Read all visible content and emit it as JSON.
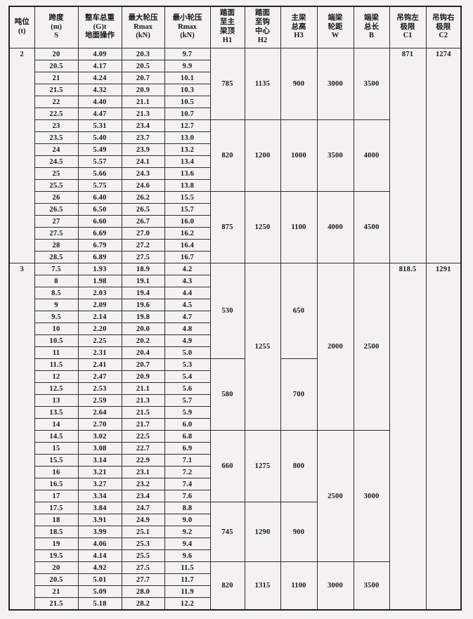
{
  "page": {
    "paper_color": "#f3f2ee",
    "line_color": "#2e2e2e",
    "text_color": "#161616"
  },
  "table": {
    "headers": [
      {
        "id": "tonnage",
        "lines": [
          "吨位",
          "(t)"
        ]
      },
      {
        "id": "span",
        "lines": [
          "跨度",
          "(m)",
          "S"
        ]
      },
      {
        "id": "total-weight",
        "lines": [
          "整车总重",
          "(G)t",
          "地面操作"
        ]
      },
      {
        "id": "max-wheel-load",
        "lines": [
          "最大轮压",
          "Rmax",
          "(kN)"
        ]
      },
      {
        "id": "min-wheel-load",
        "lines": [
          "最小轮压",
          "Rmax",
          "(kN)"
        ]
      },
      {
        "id": "h1",
        "lines": [
          "踏面",
          "至主",
          "梁顶",
          "H1"
        ]
      },
      {
        "id": "h2",
        "lines": [
          "踏面",
          "至钩",
          "中心",
          "H2"
        ]
      },
      {
        "id": "h3",
        "lines": [
          "主梁",
          "总高",
          "H3"
        ]
      },
      {
        "id": "w",
        "lines": [
          "端梁",
          "轮距",
          "W"
        ]
      },
      {
        "id": "b",
        "lines": [
          "端梁",
          "总长",
          "B"
        ]
      },
      {
        "id": "c1",
        "lines": [
          "吊钩左",
          "极限",
          "C1"
        ]
      },
      {
        "id": "c2",
        "lines": [
          "吊钩右",
          "极限",
          "C2"
        ]
      }
    ],
    "sections": [
      {
        "tonnage": "2",
        "c1": "871",
        "c2": "1274",
        "rows": [
          [
            "20",
            "4.09",
            "20.3",
            "9.7"
          ],
          [
            "20.5",
            "4.17",
            "20.5",
            "9.9"
          ],
          [
            "21",
            "4.24",
            "20.7",
            "10.1"
          ],
          [
            "21.5",
            "4.32",
            "20.9",
            "10.3"
          ],
          [
            "22",
            "4.40",
            "21.1",
            "10.5"
          ],
          [
            "22.5",
            "4.47",
            "21.3",
            "10.7"
          ],
          [
            "23",
            "5.31",
            "23.4",
            "12.7"
          ],
          [
            "23.5",
            "5.40",
            "23.7",
            "13.0"
          ],
          [
            "24",
            "5.49",
            "23.9",
            "13.2"
          ],
          [
            "24.5",
            "5.57",
            "24.1",
            "13.4"
          ],
          [
            "25",
            "5.66",
            "24.3",
            "13.6"
          ],
          [
            "25.5",
            "5.75",
            "24.6",
            "13.8"
          ],
          [
            "26",
            "6.40",
            "26.2",
            "15.5"
          ],
          [
            "26.5",
            "6.50",
            "26.5",
            "15.7"
          ],
          [
            "27",
            "6.60",
            "26.7",
            "16.0"
          ],
          [
            "27.5",
            "6.69",
            "27.0",
            "16.2"
          ],
          [
            "28",
            "6.79",
            "27.2",
            "16.4"
          ],
          [
            "28.5",
            "6.89",
            "27.5",
            "16.7"
          ]
        ],
        "h1_groups": [
          {
            "value": "785",
            "rows": 6
          },
          {
            "value": "820",
            "rows": 6
          },
          {
            "value": "875",
            "rows": 6
          }
        ],
        "h2_groups": [
          {
            "value": "1135",
            "rows": 6
          },
          {
            "value": "1200",
            "rows": 6
          },
          {
            "value": "1250",
            "rows": 6
          }
        ],
        "h3_groups": [
          {
            "value": "900",
            "rows": 6
          },
          {
            "value": "1000",
            "rows": 6
          },
          {
            "value": "1100",
            "rows": 6
          }
        ],
        "w_groups": [
          {
            "value": "3000",
            "rows": 6
          },
          {
            "value": "3500",
            "rows": 6
          },
          {
            "value": "4000",
            "rows": 6
          }
        ],
        "b_groups": [
          {
            "value": "3500",
            "rows": 6
          },
          {
            "value": "4000",
            "rows": 6
          },
          {
            "value": "4500",
            "rows": 6
          }
        ]
      },
      {
        "tonnage": "3",
        "c1": "818.5",
        "c2": "1291",
        "rows": [
          [
            "7.5",
            "1.93",
            "18.9",
            "4.2"
          ],
          [
            "8",
            "1.98",
            "19.1",
            "4.3"
          ],
          [
            "8.5",
            "2.03",
            "19.4",
            "4.4"
          ],
          [
            "9",
            "2.09",
            "19.6",
            "4.5"
          ],
          [
            "9.5",
            "2.14",
            "19.8",
            "4.7"
          ],
          [
            "10",
            "2.20",
            "20.0",
            "4.8"
          ],
          [
            "10.5",
            "2.25",
            "20.2",
            "4.9"
          ],
          [
            "11",
            "2.31",
            "20.4",
            "5.0"
          ],
          [
            "11.5",
            "2.41",
            "20.7",
            "5.3"
          ],
          [
            "12",
            "2.47",
            "20.9",
            "5.4"
          ],
          [
            "12.5",
            "2.53",
            "21.1",
            "5.6"
          ],
          [
            "13",
            "2.59",
            "21.3",
            "5.7"
          ],
          [
            "13.5",
            "2.64",
            "21.5",
            "5.9"
          ],
          [
            "14",
            "2.70",
            "21.7",
            "6.0"
          ],
          [
            "14.5",
            "3.02",
            "22.5",
            "6.8"
          ],
          [
            "15",
            "3.08",
            "22.7",
            "6.9"
          ],
          [
            "15.5",
            "3.14",
            "22.9",
            "7.1"
          ],
          [
            "16",
            "3.21",
            "23.1",
            "7.2"
          ],
          [
            "16.5",
            "3.27",
            "23.2",
            "7.4"
          ],
          [
            "17",
            "3.34",
            "23.4",
            "7.6"
          ],
          [
            "17.5",
            "3.84",
            "24.7",
            "8.8"
          ],
          [
            "18",
            "3.91",
            "24.9",
            "9.0"
          ],
          [
            "18.5",
            "3.99",
            "25.1",
            "9.2"
          ],
          [
            "19",
            "4.06",
            "25.3",
            "9.4"
          ],
          [
            "19.5",
            "4.14",
            "25.5",
            "9.6"
          ],
          [
            "20",
            "4.92",
            "27.5",
            "11.5"
          ],
          [
            "20.5",
            "5.01",
            "27.7",
            "11.7"
          ],
          [
            "21",
            "5.09",
            "28.0",
            "11.9"
          ],
          [
            "21.5",
            "5.18",
            "28.2",
            "12.2"
          ]
        ],
        "h1_groups": [
          {
            "value": "530",
            "rows": 8
          },
          {
            "value": "580",
            "rows": 6
          },
          {
            "value": "660",
            "rows": 6
          },
          {
            "value": "745",
            "rows": 5
          },
          {
            "value": "820",
            "rows": 4
          }
        ],
        "h2_groups": [
          {
            "value": "1255",
            "rows": 14
          },
          {
            "value": "1275",
            "rows": 6
          },
          {
            "value": "1290",
            "rows": 5
          },
          {
            "value": "1315",
            "rows": 4
          }
        ],
        "h3_groups": [
          {
            "value": "650",
            "rows": 8
          },
          {
            "value": "700",
            "rows": 6
          },
          {
            "value": "800",
            "rows": 6
          },
          {
            "value": "900",
            "rows": 5
          },
          {
            "value": "1100",
            "rows": 4
          }
        ],
        "w_groups": [
          {
            "value": "2000",
            "rows": 14
          },
          {
            "value": "2500",
            "rows": 11
          },
          {
            "value": "3000",
            "rows": 4
          }
        ],
        "b_groups": [
          {
            "value": "2500",
            "rows": 14
          },
          {
            "value": "3000",
            "rows": 11
          },
          {
            "value": "3500",
            "rows": 4
          }
        ]
      }
    ]
  }
}
